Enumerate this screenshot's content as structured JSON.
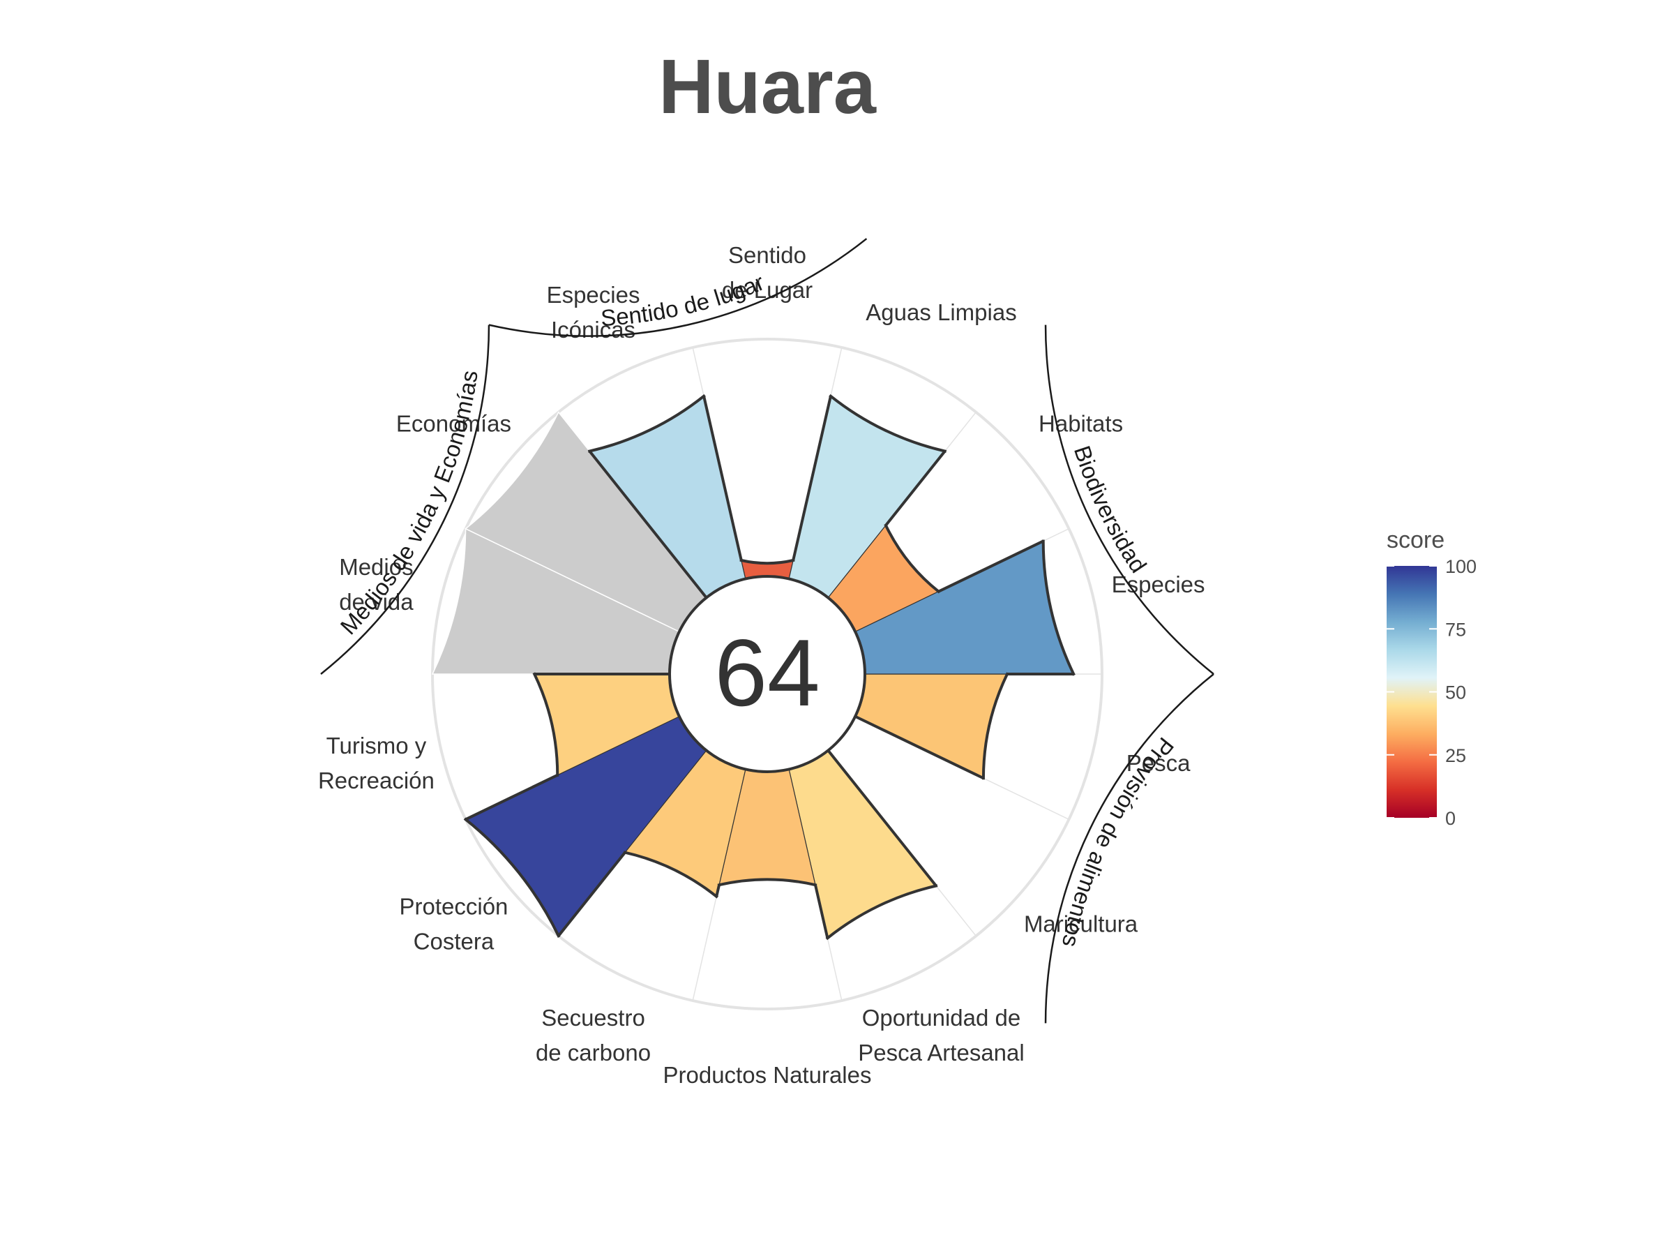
{
  "chart_data": {
    "type": "polar-bar",
    "title": "Huara",
    "center_score": "64",
    "rlim": [
      0,
      100
    ],
    "categories": [
      {
        "label": "Pesca",
        "value": 60,
        "color": "#fcc575",
        "weight": 1,
        "na": false
      },
      {
        "label": "Maricultura",
        "value": null,
        "color": null,
        "weight": 1,
        "na": false
      },
      {
        "label": "Oportunidad de\nPesca Artesanal",
        "value": 73,
        "color": "#fddb8d",
        "weight": 1,
        "na": false
      },
      {
        "label": "Productos Naturales",
        "value": 50,
        "color": "#fcc275",
        "weight": 1,
        "na": false
      },
      {
        "label": "Secuestro\nde carbono",
        "value": 55,
        "color": "#fdca7a",
        "weight": 1,
        "na": false
      },
      {
        "label": "Protección\nCostera",
        "value": 100,
        "color": "#37459c",
        "weight": 1,
        "na": false
      },
      {
        "label": "Turismo y\nRecreación",
        "value": 57,
        "color": "#fdd080",
        "weight": 1,
        "na": false
      },
      {
        "label": "Medios\nde vida",
        "value": null,
        "color": "#cccccc",
        "weight": 1,
        "na": true
      },
      {
        "label": "Economías",
        "value": null,
        "color": "#cccccc",
        "weight": 1,
        "na": true
      },
      {
        "label": "Especies\nIcónicas",
        "value": 79,
        "color": "#b6dbeb",
        "weight": 1,
        "na": false
      },
      {
        "label": "Sentido\nde Lugar",
        "value": 8,
        "color": "#e75e40",
        "weight": 1,
        "na": false
      },
      {
        "label": "Aguas Limpias",
        "value": 79,
        "color": "#c3e4ee",
        "weight": 1,
        "na": false
      },
      {
        "label": "Habitats",
        "value": 39,
        "color": "#fba55f",
        "weight": 1,
        "na": false
      },
      {
        "label": "Especies",
        "value": 88,
        "color": "#6399c6",
        "weight": 1,
        "na": false
      }
    ],
    "groups": [
      {
        "label": "Provisión de alimentos",
        "members": [
          "Pesca",
          "Maricultura"
        ]
      },
      {
        "label": "Biodiversidad",
        "members": [
          "Habitats",
          "Especies"
        ]
      },
      {
        "label": "Sentido de lugar",
        "members": [
          "Especies\nIcónicas",
          "Sentido\nde Lugar"
        ]
      },
      {
        "label": "Medios de vida y Economías",
        "members": [
          "Medios\nde vida",
          "Economías"
        ]
      }
    ],
    "legend": {
      "title": "score",
      "position": "right",
      "ticks": [
        "0",
        "25",
        "50",
        "75",
        "100"
      ],
      "stops": [
        "#a50026",
        "#d73027",
        "#f46d43",
        "#fdae61",
        "#fee090",
        "#e0f3f8",
        "#abd9e9",
        "#74add1",
        "#4575b4",
        "#313695"
      ]
    }
  }
}
